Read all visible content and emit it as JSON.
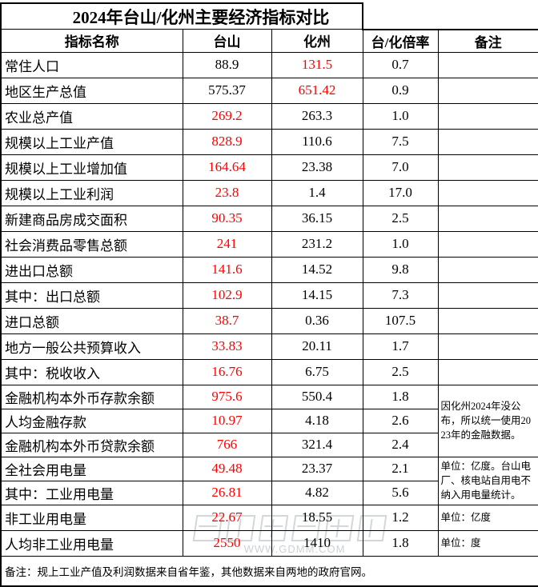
{
  "title": "2024年台山/化州主要经济指标对比",
  "header": {
    "columns": [
      "指标名称",
      "台山",
      "化州",
      "台/化倍率",
      "备注"
    ]
  },
  "rows": [
    {
      "label": "常住人口",
      "tai": "88.9",
      "hua": "131.5",
      "ratio": "0.7",
      "red": "hua",
      "remark": ""
    },
    {
      "label": "地区生产总值",
      "tai": "575.37",
      "hua": "651.42",
      "ratio": "0.9",
      "red": "hua",
      "remark": ""
    },
    {
      "label": "农业总产值",
      "tai": "269.2",
      "hua": "263.3",
      "ratio": "1.0",
      "red": "tai",
      "remark": ""
    },
    {
      "label": "规模以上工业产值",
      "tai": "828.9",
      "hua": "110.6",
      "ratio": "7.5",
      "red": "tai",
      "remark": ""
    },
    {
      "label": "规模以上工业增加值",
      "tai": "164.64",
      "hua": "23.38",
      "ratio": "7.0",
      "red": "tai",
      "remark": ""
    },
    {
      "label": "规模以上工业利润",
      "tai": "23.8",
      "hua": "1.4",
      "ratio": "17.0",
      "red": "tai",
      "remark": ""
    },
    {
      "label": "新建商品房成交面积",
      "tai": "90.35",
      "hua": "36.15",
      "ratio": "2.5",
      "red": "tai",
      "remark": ""
    },
    {
      "label": "社会消费品零售总额",
      "tai": "241",
      "hua": "231.2",
      "ratio": "1.0",
      "red": "tai",
      "remark": ""
    },
    {
      "label": "进出口总额",
      "tai": "141.6",
      "hua": "14.52",
      "ratio": "9.8",
      "red": "tai",
      "remark": ""
    },
    {
      "label": "其中：出口总额",
      "tai": "102.9",
      "hua": "14.15",
      "ratio": "7.3",
      "red": "tai",
      "remark": ""
    },
    {
      "label": "进口总额",
      "tai": "38.7",
      "hua": "0.36",
      "ratio": "107.5",
      "red": "tai",
      "remark": ""
    },
    {
      "label": "地方一般公共预算收入",
      "tai": "33.83",
      "hua": "20.11",
      "ratio": "1.7",
      "red": "tai",
      "remark": ""
    },
    {
      "label": "其中：税收收入",
      "tai": "16.76",
      "hua": "6.75",
      "ratio": "2.5",
      "red": "tai",
      "remark": ""
    },
    {
      "label": "金融机构本外币存款余额",
      "tai": "975.6",
      "hua": "550.4",
      "ratio": "1.8",
      "red": "tai",
      "remark": {
        "text": "因化州2024年没公布，所以统一使用2023年的金融数据。",
        "rowspan": 3
      }
    },
    {
      "label": "人均金融存款",
      "tai": "10.97",
      "hua": "4.18",
      "ratio": "2.6",
      "red": "tai",
      "remark": null
    },
    {
      "label": "金融机构本外币贷款余额",
      "tai": "766",
      "hua": "321.4",
      "ratio": "2.4",
      "red": "tai",
      "remark": null
    },
    {
      "label": "全社会用电量",
      "tai": "49.48",
      "hua": "23.37",
      "ratio": "2.1",
      "red": "tai",
      "remark": {
        "text": "单位：亿度。台山电厂、核电站自用电不纳入用电量统计。",
        "rowspan": 2
      }
    },
    {
      "label": "其中：工业用电量",
      "tai": "26.81",
      "hua": "4.82",
      "ratio": "5.6",
      "red": "tai",
      "remark": null
    },
    {
      "label": "非工业用电量",
      "tai": "22.67",
      "hua": "18.55",
      "ratio": "1.2",
      "red": "tai",
      "remark": "单位：亿度"
    },
    {
      "label": "人均非工业用电量",
      "tai": "2550",
      "hua": "1410",
      "ratio": "1.8",
      "red": "tai",
      "remark": "单位：度"
    }
  ],
  "footnote": "备注：规上工业产值及利润数据来自省年鉴，其他数据来自两地的政府官网。",
  "watermark": "WWW.GDMM.COM",
  "colors": {
    "highlight": "#ff0000",
    "border": "#000000",
    "watermark_gray": "#ccd1d6"
  }
}
